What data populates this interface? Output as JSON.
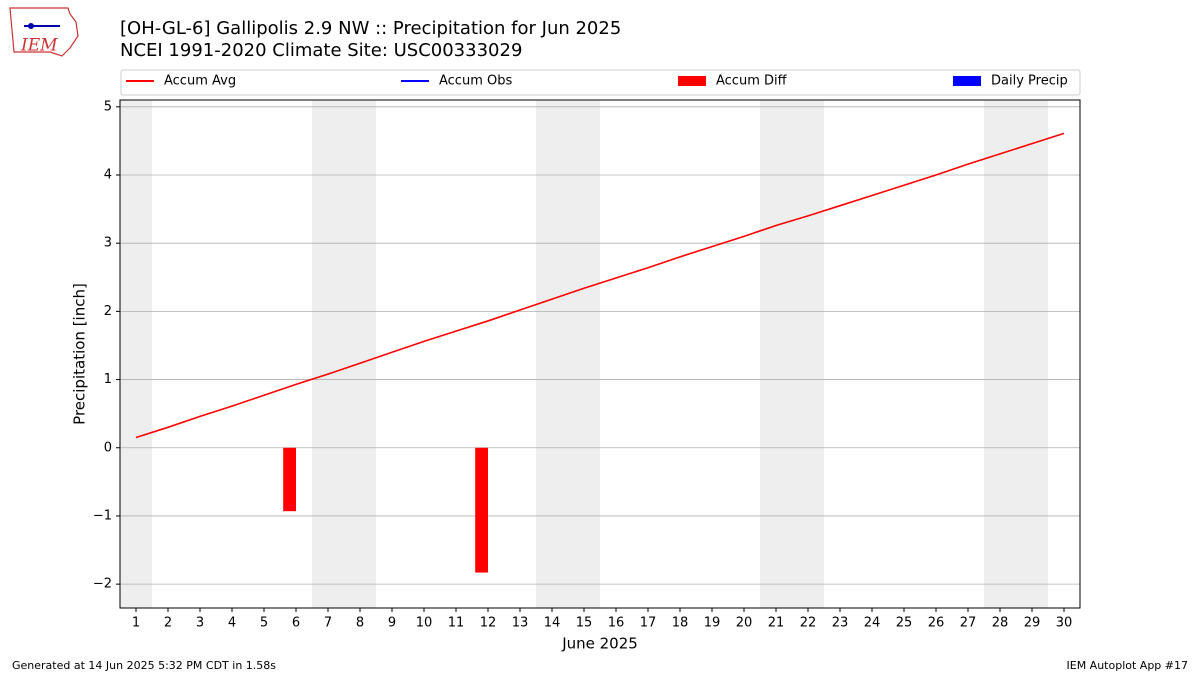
{
  "chart_data": {
    "type": "combo",
    "logo_text": "IEM",
    "title": "[OH-GL-6] Gallipolis 2.9 NW :: Precipitation for Jun 2025",
    "subtitle": "NCEI 1991-2020 Climate Site: USC00333029",
    "ylabel": "Precipitation [inch]",
    "xlabel": "June 2025",
    "x": [
      1,
      2,
      3,
      4,
      5,
      6,
      7,
      8,
      9,
      10,
      11,
      12,
      13,
      14,
      15,
      16,
      17,
      18,
      19,
      20,
      21,
      22,
      23,
      24,
      25,
      26,
      27,
      28,
      29,
      30
    ],
    "xlim": [
      0.5,
      30.5
    ],
    "xticks": [
      1,
      2,
      3,
      4,
      5,
      6,
      7,
      8,
      9,
      10,
      11,
      12,
      13,
      14,
      15,
      16,
      17,
      18,
      19,
      20,
      21,
      22,
      23,
      24,
      25,
      26,
      27,
      28,
      29,
      30
    ],
    "ylim": [
      -2.35,
      5.1
    ],
    "yticks": [
      {
        "value": -2,
        "label": "−2"
      },
      {
        "value": -1,
        "label": "−1"
      },
      0,
      1,
      2,
      3,
      4,
      5
    ],
    "grid": true,
    "shaded_days": [
      1,
      7,
      8,
      14,
      15,
      21,
      22,
      28,
      29
    ],
    "series": [
      {
        "name": "Accum Avg",
        "mark": "line",
        "color": "#ff0000",
        "values": [
          0.15,
          0.3,
          0.46,
          0.61,
          0.77,
          0.93,
          1.08,
          1.24,
          1.4,
          1.56,
          1.71,
          1.86,
          2.02,
          2.18,
          2.34,
          2.49,
          2.64,
          2.8,
          2.95,
          3.1,
          3.26,
          3.4,
          3.55,
          3.7,
          3.85,
          4.0,
          4.16,
          4.31,
          4.46,
          4.61
        ]
      },
      {
        "name": "Accum Obs",
        "mark": "line",
        "color": "#0000ff",
        "values": [
          null,
          null,
          null,
          null,
          null,
          null,
          null,
          null,
          null,
          null,
          null,
          null,
          null,
          null,
          null,
          null,
          null,
          null,
          null,
          null,
          null,
          null,
          null,
          null,
          null,
          null,
          null,
          null,
          null,
          null
        ]
      },
      {
        "name": "Accum Diff",
        "mark": "bar",
        "color": "#ff0000",
        "values": [
          null,
          null,
          null,
          null,
          null,
          -0.93,
          null,
          null,
          null,
          null,
          null,
          -1.83,
          null,
          null,
          null,
          null,
          null,
          null,
          null,
          null,
          null,
          null,
          null,
          null,
          null,
          null,
          null,
          null,
          null,
          null
        ]
      },
      {
        "name": "Daily Precip",
        "mark": "bar",
        "color": "#0000ff",
        "values": [
          null,
          null,
          null,
          null,
          null,
          null,
          null,
          null,
          null,
          null,
          null,
          null,
          null,
          null,
          null,
          null,
          null,
          null,
          null,
          null,
          null,
          null,
          null,
          null,
          null,
          null,
          null,
          null,
          null,
          null
        ]
      }
    ],
    "footer_left": "Generated at 14 Jun 2025 5:32 PM CDT in 1.58s",
    "footer_right": "IEM Autoplot App #17"
  }
}
